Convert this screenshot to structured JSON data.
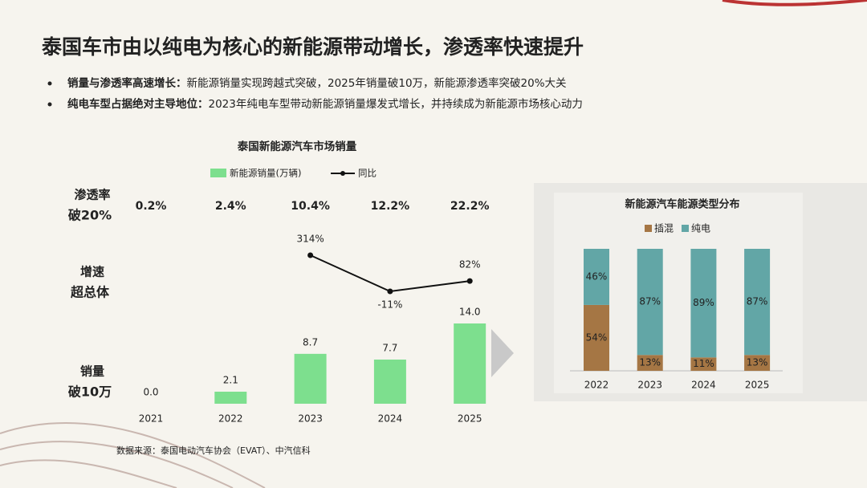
{
  "title": "泰国车市由以纯电为核心的新能源带动增长，渗透率快速提升",
  "bullets": [
    {
      "label": "销量与渗透率高速增长：",
      "text": "新能源销量实现跨越式突破，2025年销量破10万，新能源渗透率突破20%大关"
    },
    {
      "label": "纯电车型占据绝对主导地位：",
      "text": "2023年纯电车型带动新能源销量爆发式增长，并持续成为新能源市场核心动力"
    }
  ],
  "side_labels": [
    {
      "top": "渗透率",
      "bottom": "破20%"
    },
    {
      "top": "增速",
      "bottom": "超总体"
    },
    {
      "top": "销量",
      "bottom": "破10万"
    }
  ],
  "source": "数据来源：泰国电动汽车协会（EVAT）、中汽信科",
  "chart_data": [
    {
      "type": "bar",
      "title": "泰国新能源汽车市场销量",
      "categories": [
        "2021",
        "2022",
        "2023",
        "2024",
        "2025"
      ],
      "penetration": {
        "values": [
          0.2,
          2.4,
          10.4,
          12.2,
          22.2
        ],
        "value_labels": [
          "0.2%",
          "2.4%",
          "10.4%",
          "12.2%",
          "22.2%"
        ]
      },
      "series": [
        {
          "name": "新能源销量(万辆)",
          "color": "#7ddf8e",
          "values": [
            0.0,
            2.1,
            8.7,
            7.7,
            14.0
          ],
          "value_labels": [
            "0.0",
            "2.1",
            "8.7",
            "7.7",
            "14.0"
          ]
        },
        {
          "name": "同比",
          "type": "line",
          "color": "#111111",
          "values": [
            null,
            null,
            314,
            -11,
            82
          ],
          "value_labels": [
            null,
            null,
            "314%",
            "-11%",
            "82%"
          ]
        }
      ]
    },
    {
      "type": "stacked_bar",
      "title": "新能源汽车能源类型分布",
      "categories": [
        "2022",
        "2023",
        "2024",
        "2025"
      ],
      "ylim": [
        0,
        100
      ],
      "series": [
        {
          "name": "插混",
          "color": "#a57644",
          "values": [
            54,
            13,
            11,
            13
          ],
          "value_labels": [
            "54%",
            "13%",
            "11%",
            "13%"
          ]
        },
        {
          "name": "纯电",
          "color": "#62a6a6",
          "values": [
            46,
            87,
            89,
            87
          ],
          "value_labels": [
            "46%",
            "87%",
            "89%",
            "87%"
          ]
        }
      ]
    }
  ]
}
